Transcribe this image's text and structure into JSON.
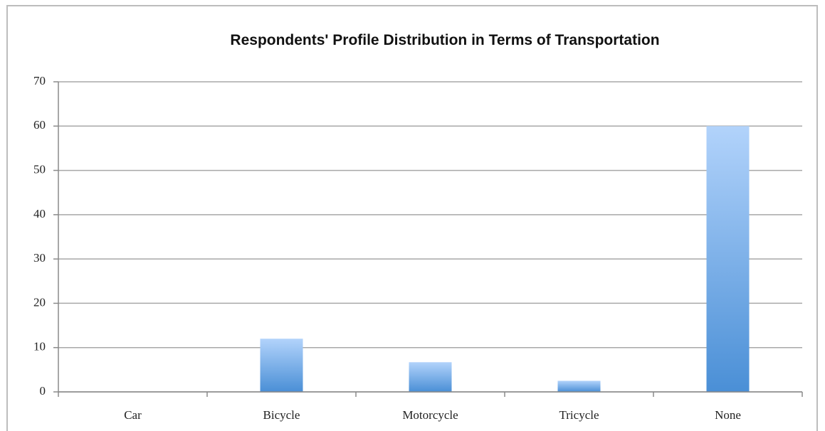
{
  "chart_data": {
    "type": "bar",
    "title": "Respondents' Profile Distribution in Terms of Transportation",
    "categories": [
      "Car",
      "Bicycle",
      "Motorcycle",
      "Tricycle",
      "None"
    ],
    "values": [
      0,
      12,
      6.7,
      2.5,
      60
    ],
    "color": "#4a8fd6",
    "ylim": [
      0,
      70
    ],
    "yticks": [
      0,
      10,
      20,
      30,
      40,
      50,
      60,
      70
    ],
    "grid": true
  }
}
